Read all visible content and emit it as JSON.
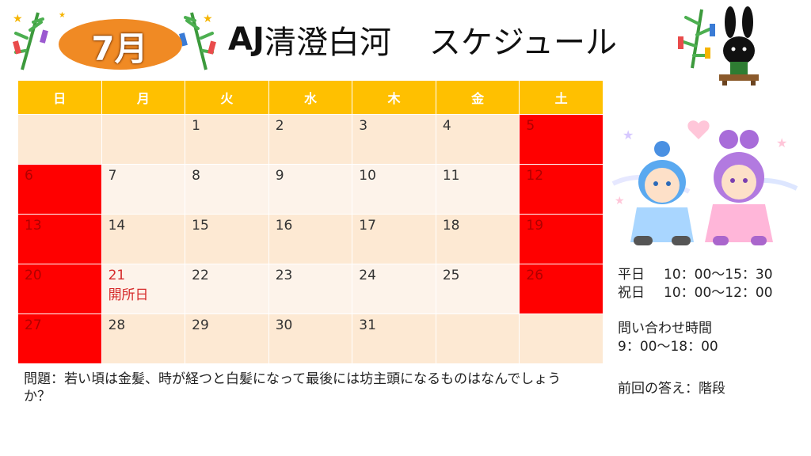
{
  "header": {
    "month_label": "7月",
    "title_brand": "AJ",
    "title_name": "清澄白河",
    "title_suffix": "スケジュール"
  },
  "calendar": {
    "weekdays": [
      "日",
      "月",
      "火",
      "水",
      "木",
      "金",
      "土"
    ],
    "weeks": [
      [
        "",
        "",
        "1",
        "2",
        "3",
        "4",
        "5"
      ],
      [
        "6",
        "7",
        "8",
        "9",
        "10",
        "11",
        "12"
      ],
      [
        "13",
        "14",
        "15",
        "16",
        "17",
        "18",
        "19"
      ],
      [
        "20",
        "21",
        "22",
        "23",
        "24",
        "25",
        "26"
      ],
      [
        "27",
        "28",
        "29",
        "30",
        "31",
        "",
        ""
      ]
    ],
    "holidays": [
      "5",
      "6",
      "12",
      "13",
      "19",
      "20",
      "26",
      "27"
    ],
    "open_day": "21",
    "open_day_note": "開所日"
  },
  "hours": {
    "weekday_label": "平日",
    "weekday_time": "10：00〜15：30",
    "holiday_label": "祝日",
    "holiday_time": "10：00〜12：00"
  },
  "contact": {
    "label": "問い合わせ時間",
    "time": "9：00〜18：00"
  },
  "previous_answer": "前回の答え：階段",
  "quiz": "問題：若い頃は金髪、時が経つと白髪になって最後には坊主頭になるものはなんでしょうか？",
  "colors": {
    "header_bg": "#ffc000",
    "holiday_bg": "#ff0000",
    "row_odd": "#fde9d3",
    "row_even": "#fdf3ea",
    "badge": "#f08a24"
  }
}
